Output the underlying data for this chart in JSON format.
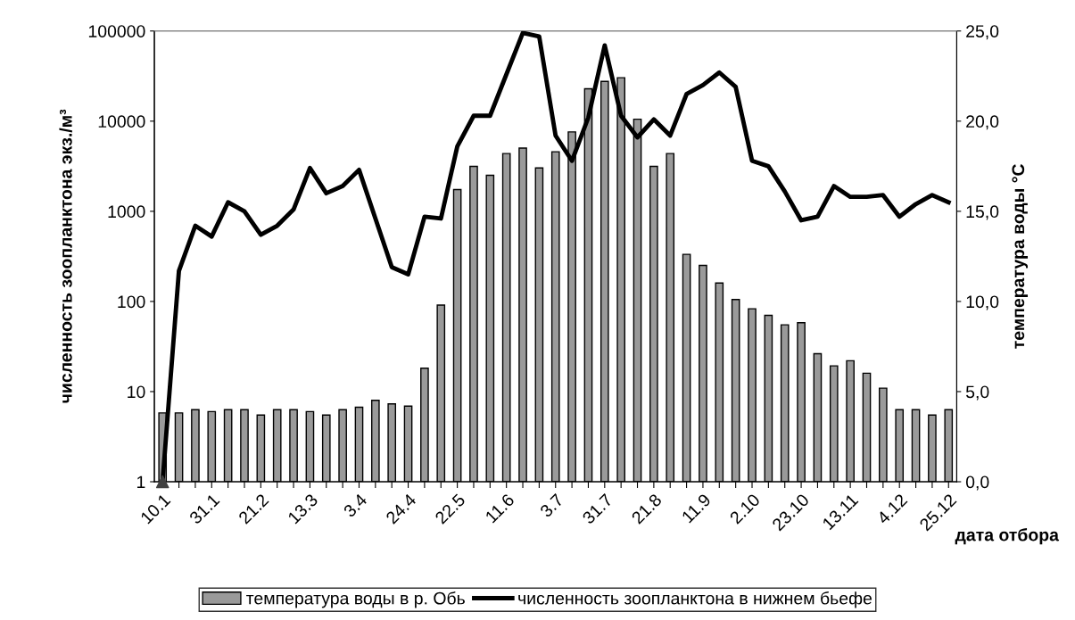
{
  "chart_data": {
    "type": "bar",
    "xlabel": "дата отбора",
    "ylabel": "численность зоопланктона экз./м³",
    "y2label": "температура воды °C",
    "categories": [
      "10.1",
      null,
      null,
      "31.1",
      null,
      null,
      "21.2",
      null,
      null,
      "13.3",
      null,
      null,
      "3.4",
      null,
      null,
      "24.4",
      null,
      null,
      "22.5",
      null,
      null,
      "11.6",
      null,
      null,
      "3.7",
      null,
      null,
      "31.7",
      null,
      null,
      "21.8",
      null,
      null,
      "11.9",
      null,
      null,
      "2.10",
      null,
      null,
      "23.10",
      null,
      null,
      "13.11",
      null,
      null,
      "4.12",
      null,
      null,
      "25.12"
    ],
    "log": "y",
    "ylim": [
      1,
      100000
    ],
    "yticks": [
      1,
      10,
      100,
      1000,
      10000,
      100000
    ],
    "y2lim": [
      0,
      25
    ],
    "y2ticks": [
      {
        "value": 0,
        "label": "0,0"
      },
      {
        "value": 5,
        "label": "5,0"
      },
      {
        "value": 10,
        "label": "10,0"
      },
      {
        "value": 15,
        "label": "15,0"
      },
      {
        "value": 20,
        "label": "20,0"
      },
      {
        "value": 25,
        "label": "25,0"
      }
    ],
    "grid": false,
    "legend": "bottom",
    "series": [
      {
        "name": "температура воды в р. Обь",
        "color": "#9a9a9a",
        "values": [
          5.8,
          5.8,
          6.3,
          6.0,
          6.3,
          6.3,
          5.5,
          6.3,
          6.3,
          6.0,
          5.5,
          6.3,
          6.7,
          8.0,
          7.3,
          6.9,
          18.2,
          91,
          1740,
          3150,
          2510,
          4370,
          5030,
          3030,
          4580,
          7600,
          22900,
          27600,
          30300,
          10500,
          3150,
          4370,
          333,
          251,
          160,
          105,
          83,
          70,
          55,
          58,
          26.3,
          19.3,
          22,
          16,
          10.9,
          6.3,
          6.3,
          5.5,
          6.3
        ]
      },
      {
        "name": "численность зоопланктона в нижнем бьефе",
        "type": "line",
        "axis": "y2",
        "color": "#000000",
        "line_style": "solid",
        "marker": "none",
        "values": [
          0.0,
          11.7,
          14.2,
          13.6,
          15.5,
          15.0,
          13.7,
          14.2,
          15.1,
          17.4,
          16.0,
          16.4,
          17.3,
          14.6,
          11.9,
          11.5,
          14.7,
          14.6,
          18.6,
          20.3,
          20.3,
          22.6,
          24.9,
          24.7,
          19.2,
          17.8,
          20.2,
          24.2,
          20.3,
          19.1,
          20.1,
          19.2,
          21.5,
          22.0,
          22.7,
          21.9,
          17.8,
          17.5,
          16.1,
          14.5,
          14.7,
          16.4,
          15.8,
          15.8,
          15.9,
          14.7,
          15.4,
          15.9,
          15.5
        ]
      },
      {
        "type": "scatter",
        "axis": "y2",
        "color": "#404040",
        "marker": "triangle",
        "values": [
          0.0,
          null,
          null,
          null,
          null,
          null,
          null,
          null,
          null,
          null,
          null,
          null,
          null,
          null,
          null,
          null,
          null,
          null,
          null,
          null,
          null,
          null,
          null,
          null,
          null,
          null,
          null,
          null,
          null,
          null,
          null,
          null,
          null,
          null,
          null,
          null,
          null,
          null,
          null,
          null,
          null,
          null,
          null,
          null,
          null,
          null,
          null,
          null,
          null
        ]
      }
    ]
  }
}
